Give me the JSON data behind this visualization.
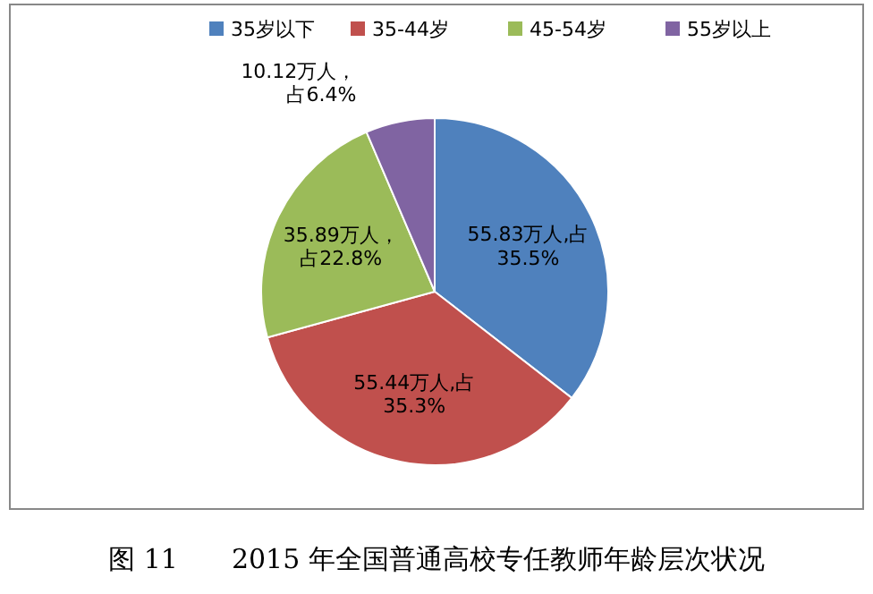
{
  "chart_data": {
    "type": "pie",
    "title": "图 11　　2015 年全国普通高校专任教师年龄层次状况",
    "categories": [
      "35岁以下",
      "35-44岁",
      "45-54岁",
      "55岁以上"
    ],
    "values": [
      55.83,
      55.44,
      35.89,
      10.12
    ],
    "colors": [
      "#4f81bd",
      "#c0504d",
      "#9bbb59",
      "#8064a2"
    ],
    "value_labels": [
      "55.83万人,占35.5%",
      "55.44万人,占35.3%",
      "35.89万人，占22.8%",
      "10.12万人，占6.4%"
    ],
    "legend": "top"
  }
}
